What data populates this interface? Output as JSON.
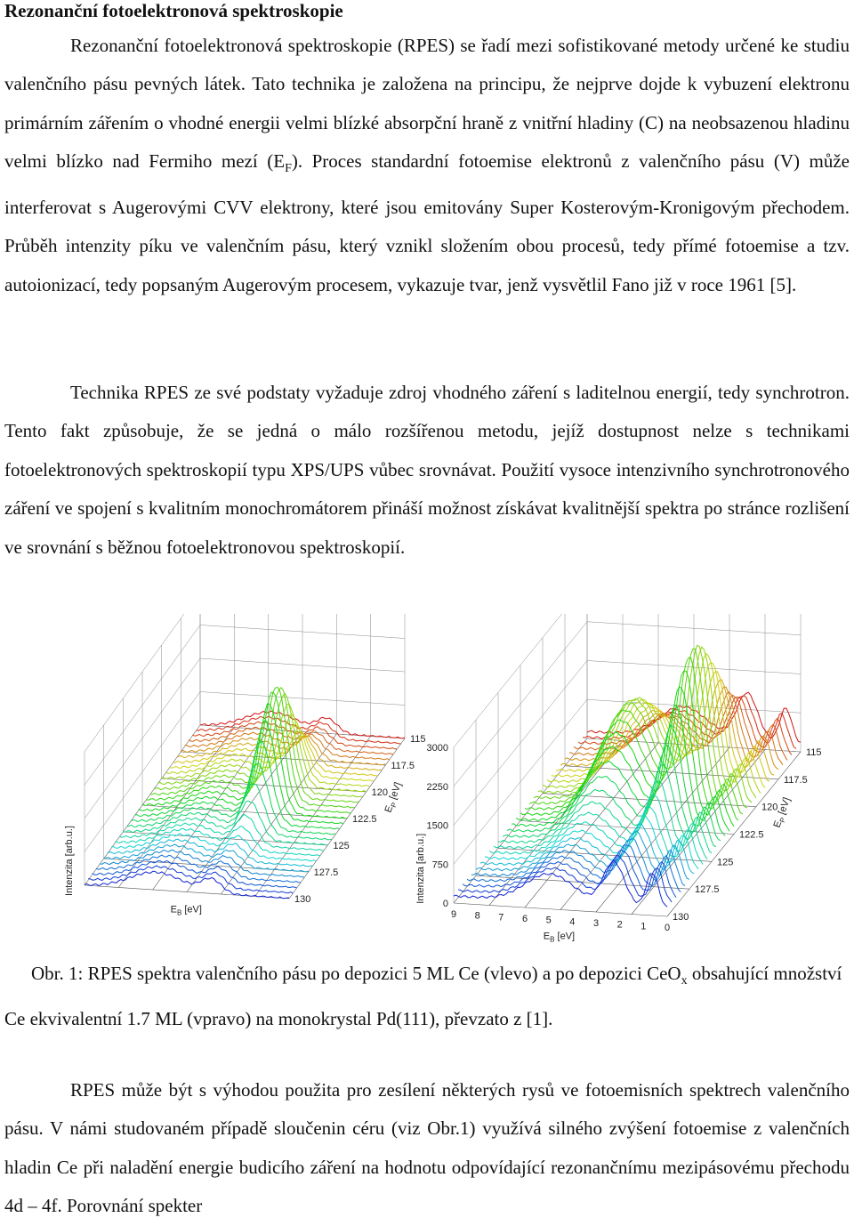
{
  "heading": "Rezonanční fotoelektronová spektroskopie",
  "para1": {
    "part1": "Rezonanční fotoelektronová spektroskopie (RPES) se řadí mezi sofistikované metody určené ke studiu valenčního pásu pevných látek. Tato technika je založena na principu, že nejprve dojde k vybuzení elektronu primárním zářením o vhodné energii velmi blízké absorpční hraně z vnitřní hladiny (C) na neobsazenou hladinu velmi blízko nad Fermiho mezí (E",
    "sub": "F",
    "part2": "). Proces standardní fotoemise elektronů z valenčního pásu (V) může interferovat s Augerovými CVV elektrony, které jsou emitovány Super Kosterovým-Kronigovým přechodem. Průběh intenzity píku ve valenčním pásu, který vznikl složením obou procesů, tedy přímé fotoemise a tzv. autoionizací, tedy popsaným Augerovým procesem, vykazuje tvar, jenž vysvětlil Fano již v roce 1961 [5]."
  },
  "para2": "Technika RPES ze své podstaty vyžaduje zdroj vhodného záření s laditelnou energií, tedy synchrotron. Tento fakt způsobuje, že se jedná o málo rozšířenou metodu, jejíž dostupnost nelze s technikami fotoelektronových spektroskopií typu XPS/UPS vůbec srovnávat. Použití vysoce intenzivního synchrotronového záření ve spojení s kvalitním monochromátorem přináší možnost získávat kvalitnější spektra po stránce rozlišení ve srovnání s běžnou fotoelektronovou spektroskopií.",
  "caption": {
    "part1": "Obr. 1: RPES spektra valenčního pásu po depozici 5 ML Ce (vlevo) a po depozici CeO",
    "sub": "x",
    "part2": " obsahující množství Ce ekvivalentní 1.7 ML (vpravo) na monokrystal Pd(111), převzato z [1]."
  },
  "para3": "RPES může být s výhodou použita pro zesílení některých rysů ve fotoemisních spektrech valenčního pásu. V námi studovaném případě sloučenin céru (viz Obr.1) využívá silného zvýšení fotoemise z valenčních hladin Ce při naladění energie budicího záření na hodnotu odpovídající rezonančnímu mezipásovému přechodu 4d – 4f. Porovnání spekter",
  "chart_data": [
    {
      "type": "3d-waterfall",
      "title": "",
      "xlabel": "E",
      "xlabel_sub": "B",
      "xlabel_unit": " [eV]",
      "ylabel": "Intenzita [arb.u.]",
      "zlabel": "E",
      "zlabel_sub": "P",
      "zlabel_unit": " [eV]",
      "z_ticks": [
        "115",
        "117.5",
        "120",
        "122.5",
        "125",
        "127.5",
        "130"
      ],
      "photon_energy_range": [
        115,
        130
      ],
      "peak_center_binding_energy_eV": 2,
      "n_spectra": 31
    },
    {
      "type": "3d-waterfall",
      "title": "",
      "xlabel": "E",
      "xlabel_sub": "B",
      "xlabel_unit": " [eV]",
      "ylabel": "Intenzita [arb.u.]",
      "zlabel": "E",
      "zlabel_sub": "P",
      "zlabel_unit": " [eV]",
      "x_ticks": [
        "9",
        "8",
        "7",
        "6",
        "5",
        "4",
        "3",
        "2",
        "1",
        "0"
      ],
      "y_ticks": [
        "0",
        "750",
        "1500",
        "2250",
        "3000"
      ],
      "z_ticks": [
        "115",
        "117.5",
        "120",
        "122.5",
        "125",
        "127.5",
        "130"
      ],
      "photon_energy_range": [
        115,
        130
      ],
      "ylim": [
        0,
        3000
      ],
      "n_spectra": 31
    }
  ]
}
